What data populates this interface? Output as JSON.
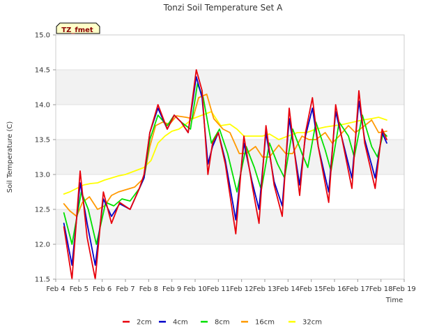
{
  "chart_data": {
    "type": "line",
    "title": "Tonzi Soil Temperature Set A",
    "xlabel": "Time",
    "ylabel": "Soil Temperature (C)",
    "badge": "TZ_fmet",
    "xlim": [
      4,
      19
    ],
    "ylim": [
      11.5,
      15.0
    ],
    "x_ticks": [
      4,
      5,
      6,
      7,
      8,
      9,
      10,
      11,
      12,
      13,
      14,
      15,
      16,
      17,
      18,
      19
    ],
    "x_tick_labels": [
      "Feb 4",
      "Feb 5",
      "Feb 6",
      "Feb 7",
      "Feb 8",
      "Feb 9",
      "Feb 10",
      "Feb 11",
      "Feb 12",
      "Feb 13",
      "Feb 14",
      "Feb 15",
      "Feb 16",
      "Feb 17",
      "Feb 18",
      "Feb 19"
    ],
    "y_ticks": [
      11.5,
      12.0,
      12.5,
      13.0,
      13.5,
      14.0,
      14.5,
      15.0
    ],
    "y_tick_labels": [
      "11.5",
      "12.0",
      "12.5",
      "13.0",
      "13.5",
      "14.0",
      "14.5",
      "15.0"
    ],
    "legend_position": "bottom-center",
    "series": [
      {
        "name": "2cm",
        "color": "#e8000b",
        "x": [
          4.35,
          4.7,
          5.05,
          5.35,
          5.7,
          6.05,
          6.4,
          6.75,
          7.2,
          7.6,
          7.8,
          8.05,
          8.4,
          8.8,
          9.1,
          9.4,
          9.7,
          10.05,
          10.3,
          10.55,
          10.75,
          11.0,
          11.3,
          11.75,
          12.1,
          12.45,
          12.75,
          13.05,
          13.4,
          13.75,
          14.05,
          14.5,
          14.75,
          15.05,
          15.3,
          15.75,
          16.05,
          16.3,
          16.75,
          17.05,
          17.3,
          17.75,
          18.05,
          18.25
        ],
        "y": [
          12.25,
          11.5,
          13.05,
          12.1,
          11.5,
          12.75,
          12.3,
          12.6,
          12.5,
          12.8,
          13.0,
          13.6,
          14.0,
          13.65,
          13.85,
          13.75,
          13.6,
          14.5,
          14.2,
          13.0,
          13.45,
          13.6,
          13.15,
          12.15,
          13.55,
          12.85,
          12.3,
          13.7,
          12.85,
          12.4,
          13.95,
          12.7,
          13.6,
          14.1,
          13.4,
          12.6,
          14.0,
          13.55,
          12.8,
          14.2,
          13.45,
          12.8,
          13.65,
          13.5
        ]
      },
      {
        "name": "4cm",
        "color": "#0000c8",
        "x": [
          4.35,
          4.7,
          5.05,
          5.35,
          5.7,
          6.05,
          6.4,
          6.75,
          7.2,
          7.6,
          7.8,
          8.05,
          8.4,
          8.8,
          9.1,
          9.4,
          9.7,
          10.05,
          10.3,
          10.55,
          10.75,
          11.0,
          11.3,
          11.75,
          12.1,
          12.45,
          12.75,
          13.05,
          13.4,
          13.75,
          14.05,
          14.5,
          14.75,
          15.05,
          15.3,
          15.75,
          16.05,
          16.3,
          16.75,
          17.05,
          17.3,
          17.75,
          18.05,
          18.25
        ],
        "y": [
          12.3,
          11.7,
          12.88,
          12.3,
          11.7,
          12.65,
          12.4,
          12.58,
          12.5,
          12.8,
          12.95,
          13.6,
          13.95,
          13.65,
          13.85,
          13.75,
          13.6,
          14.4,
          14.1,
          13.15,
          13.4,
          13.6,
          13.2,
          12.35,
          13.45,
          12.9,
          12.5,
          13.6,
          12.9,
          12.55,
          13.8,
          12.85,
          13.55,
          13.95,
          13.4,
          12.75,
          13.9,
          13.55,
          12.95,
          14.05,
          13.5,
          12.95,
          13.6,
          13.45
        ]
      },
      {
        "name": "8cm",
        "color": "#00e000",
        "x": [
          4.35,
          4.7,
          5.1,
          5.4,
          5.75,
          6.15,
          6.5,
          6.85,
          7.2,
          7.6,
          7.8,
          8.05,
          8.4,
          8.8,
          9.1,
          9.4,
          9.8,
          10.1,
          10.35,
          10.7,
          11.05,
          11.4,
          11.8,
          12.2,
          12.55,
          12.85,
          13.2,
          13.55,
          13.85,
          14.2,
          14.6,
          14.85,
          15.2,
          15.6,
          15.85,
          16.2,
          16.6,
          16.85,
          17.2,
          17.6,
          17.85,
          18.1,
          18.25
        ],
        "y": [
          12.45,
          12.0,
          12.75,
          12.5,
          12.0,
          12.6,
          12.55,
          12.65,
          12.62,
          12.8,
          12.95,
          13.5,
          13.85,
          13.7,
          13.85,
          13.75,
          13.65,
          14.3,
          14.1,
          13.45,
          13.65,
          13.3,
          12.75,
          13.4,
          13.1,
          12.78,
          13.45,
          13.15,
          12.95,
          13.65,
          13.3,
          13.1,
          13.75,
          13.35,
          13.05,
          13.75,
          13.55,
          13.25,
          13.85,
          13.4,
          13.25,
          13.6,
          13.55
        ]
      },
      {
        "name": "16cm",
        "color": "#ff9900",
        "x": [
          4.35,
          4.6,
          4.9,
          5.15,
          5.45,
          5.8,
          6.1,
          6.4,
          6.7,
          7.0,
          7.4,
          7.8,
          8.05,
          8.3,
          8.6,
          8.9,
          9.2,
          9.6,
          9.9,
          10.15,
          10.5,
          10.8,
          11.2,
          11.5,
          11.9,
          12.2,
          12.6,
          12.9,
          13.2,
          13.6,
          13.9,
          14.2,
          14.6,
          14.9,
          15.2,
          15.6,
          15.9,
          16.2,
          16.6,
          16.9,
          17.3,
          17.6,
          17.9,
          18.25
        ],
        "y": [
          12.58,
          12.48,
          12.4,
          12.6,
          12.68,
          12.5,
          12.55,
          12.7,
          12.75,
          12.78,
          12.82,
          12.95,
          13.4,
          13.7,
          13.75,
          13.72,
          13.84,
          13.82,
          13.8,
          14.1,
          14.15,
          13.8,
          13.65,
          13.6,
          13.3,
          13.3,
          13.4,
          13.25,
          13.25,
          13.42,
          13.3,
          13.3,
          13.55,
          13.5,
          13.5,
          13.6,
          13.45,
          13.55,
          13.7,
          13.6,
          13.7,
          13.78,
          13.6,
          13.62
        ]
      },
      {
        "name": "32cm",
        "color": "#ffff00",
        "x": [
          4.35,
          4.6,
          4.9,
          5.2,
          5.5,
          5.8,
          6.1,
          6.4,
          6.7,
          7.0,
          7.4,
          7.8,
          8.1,
          8.4,
          8.7,
          9.0,
          9.3,
          9.6,
          9.9,
          10.3,
          10.7,
          11.1,
          11.5,
          11.8,
          12.1,
          12.5,
          12.9,
          13.2,
          13.6,
          14.0,
          14.4,
          14.8,
          15.2,
          15.6,
          16.0,
          16.4,
          16.8,
          17.2,
          17.6,
          17.9,
          18.25
        ],
        "y": [
          12.72,
          12.75,
          12.8,
          12.85,
          12.87,
          12.88,
          12.92,
          12.95,
          12.98,
          13.0,
          13.05,
          13.1,
          13.2,
          13.45,
          13.55,
          13.62,
          13.65,
          13.72,
          13.8,
          13.85,
          13.9,
          13.7,
          13.72,
          13.65,
          13.55,
          13.55,
          13.55,
          13.58,
          13.5,
          13.55,
          13.6,
          13.6,
          13.65,
          13.68,
          13.7,
          13.72,
          13.75,
          13.78,
          13.8,
          13.82,
          13.78
        ]
      }
    ]
  }
}
